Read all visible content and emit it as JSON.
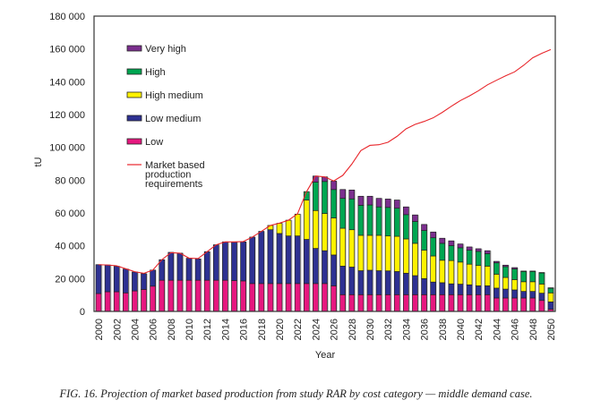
{
  "caption": "FIG. 16. Projection of market based production from study RAR by cost category — middle demand case.",
  "chart_data": {
    "type": "bar",
    "stacked": true,
    "title": "",
    "xlabel": "Year",
    "ylabel": "tU",
    "ylim": [
      0,
      180000
    ],
    "y_ticks": [
      0,
      20000,
      40000,
      60000,
      80000,
      100000,
      120000,
      140000,
      160000,
      180000
    ],
    "y_tick_labels": [
      "0",
      "20 000",
      "40 000",
      "60 000",
      "80 000",
      "100 000",
      "120 000",
      "140 000",
      "160 000",
      "180 000"
    ],
    "x_tick_labels": [
      "2000",
      "2002",
      "2004",
      "2006",
      "2008",
      "2010",
      "2012",
      "2014",
      "2016",
      "2018",
      "2020",
      "2022",
      "2024",
      "2026",
      "2028",
      "2030",
      "2032",
      "2034",
      "2036",
      "2038",
      "2040",
      "2042",
      "2044",
      "2046",
      "2048",
      "2050"
    ],
    "grid": false,
    "legend_position": "top-left",
    "categories": [
      2000,
      2001,
      2002,
      2003,
      2004,
      2005,
      2006,
      2007,
      2008,
      2009,
      2010,
      2011,
      2012,
      2013,
      2014,
      2015,
      2016,
      2017,
      2018,
      2019,
      2020,
      2021,
      2022,
      2023,
      2024,
      2025,
      2026,
      2027,
      2028,
      2029,
      2030,
      2031,
      2032,
      2033,
      2034,
      2035,
      2036,
      2037,
      2038,
      2039,
      2040,
      2041,
      2042,
      2043,
      2044,
      2045,
      2046,
      2047,
      2048,
      2049,
      2050
    ],
    "series": [
      {
        "name": "Low",
        "color": "#e6187f",
        "values": [
          10900,
          12000,
          12000,
          11300,
          12500,
          13400,
          15400,
          19000,
          19000,
          19000,
          19000,
          19000,
          19000,
          19000,
          19000,
          18800,
          18600,
          17000,
          17000,
          17000,
          17000,
          17000,
          17000,
          17000,
          17000,
          17000,
          15600,
          10200,
          10200,
          10200,
          10200,
          10200,
          10200,
          10200,
          10200,
          10200,
          10200,
          10200,
          10200,
          10200,
          10200,
          10200,
          10200,
          10200,
          8200,
          8200,
          8200,
          8200,
          8200,
          6700,
          1300
        ]
      },
      {
        "name": "Low medium",
        "color": "#2e3192",
        "values": [
          17600,
          16300,
          15500,
          14500,
          11500,
          9600,
          9800,
          12500,
          17000,
          16500,
          13400,
          13000,
          17400,
          21600,
          23400,
          23400,
          23800,
          28300,
          31800,
          32800,
          30500,
          29000,
          29000,
          26900,
          21400,
          20000,
          18800,
          17400,
          16800,
          14600,
          14900,
          14600,
          14500,
          14100,
          13100,
          11600,
          9800,
          7700,
          7300,
          6600,
          6400,
          6000,
          5400,
          5400,
          6000,
          5400,
          4900,
          4000,
          4000,
          4400,
          4500
        ]
      },
      {
        "name": "High medium",
        "color": "#fff200",
        "values": [
          0,
          0,
          0,
          0,
          0,
          0,
          0,
          0,
          0,
          0,
          0,
          0,
          0,
          0,
          0,
          0,
          0,
          0,
          0,
          2600,
          6200,
          9600,
          13300,
          24000,
          23100,
          22700,
          22600,
          23100,
          22800,
          21600,
          21300,
          21600,
          21300,
          21500,
          20900,
          19700,
          17300,
          15900,
          13700,
          14200,
          13500,
          12600,
          12400,
          12000,
          8500,
          7100,
          6300,
          5900,
          5900,
          5600,
          5500
        ]
      },
      {
        "name": "High",
        "color": "#00a651",
        "values": [
          0,
          0,
          0,
          0,
          0,
          0,
          0,
          0,
          0,
          0,
          0,
          0,
          0,
          0,
          0,
          0,
          0,
          0,
          0,
          0,
          0,
          0,
          0,
          5100,
          17300,
          19500,
          17300,
          18200,
          18800,
          18300,
          18500,
          17300,
          17400,
          17100,
          14800,
          13300,
          12000,
          11100,
          10300,
          9100,
          8700,
          8500,
          8600,
          7600,
          6900,
          6600,
          6500,
          6300,
          6300,
          6800,
          2900
        ]
      },
      {
        "name": "Very high",
        "color": "#7b2f8e",
        "values": [
          0,
          0,
          0,
          0,
          0,
          0,
          0,
          0,
          0,
          0,
          0,
          0,
          0,
          0,
          0,
          0,
          0,
          0,
          0,
          0,
          0,
          0,
          0,
          0,
          3700,
          2800,
          5100,
          5400,
          5400,
          5500,
          5300,
          5200,
          5100,
          5000,
          4700,
          4000,
          3700,
          3500,
          3100,
          2900,
          2300,
          2000,
          1600,
          1800,
          900,
          900,
          800,
          200,
          200,
          200,
          200
        ]
      }
    ],
    "line_series": {
      "name": "Market based production requirements",
      "color": "#e8262b",
      "values": [
        28500,
        28300,
        27800,
        26000,
        24200,
        23200,
        25200,
        31500,
        35800,
        35500,
        32500,
        32200,
        36400,
        40600,
        42400,
        42400,
        42600,
        45300,
        48800,
        52400,
        53800,
        55600,
        59500,
        73000,
        82500,
        82000,
        79500,
        82900,
        89800,
        98000,
        101200,
        101600,
        103100,
        106700,
        111300,
        114000,
        115800,
        118000,
        121300,
        125000,
        128500,
        131300,
        134500,
        138100,
        140900,
        143600,
        146000,
        150000,
        154600,
        157300,
        159600
      ]
    },
    "legend": [
      "Very high",
      "High",
      "High medium",
      "Low medium",
      "Low",
      "Market based production requirements"
    ]
  }
}
